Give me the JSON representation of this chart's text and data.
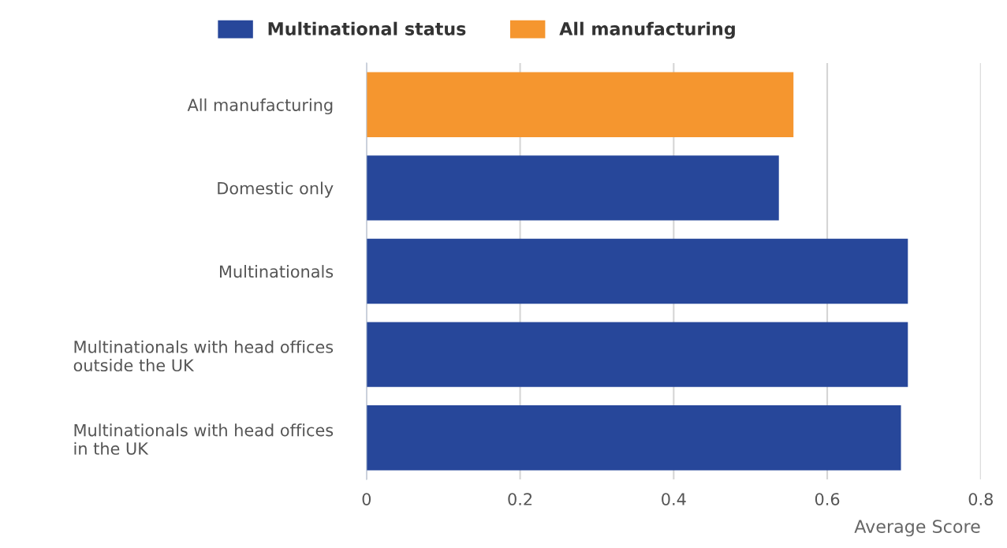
{
  "chart_data": {
    "type": "bar",
    "orientation": "horizontal",
    "categories": [
      "All manufacturing",
      "Domestic only",
      "Multinationals",
      "Multinationals with head offices\noutside the UK",
      "Multinationals with head offices\nin the UK"
    ],
    "series": [
      {
        "name": "Multinational status",
        "color": "#27479a",
        "values": [
          null,
          0.537,
          0.705,
          0.705,
          0.696
        ]
      },
      {
        "name": "All manufacturing",
        "color": "#f5962f",
        "values": [
          0.556,
          null,
          null,
          null,
          null
        ]
      }
    ],
    "xlim": [
      0,
      0.8
    ],
    "xticks": [
      0,
      0.2,
      0.4,
      0.6,
      0.8
    ],
    "xlabel": "Average Score",
    "grid": "x",
    "legend": "top"
  }
}
